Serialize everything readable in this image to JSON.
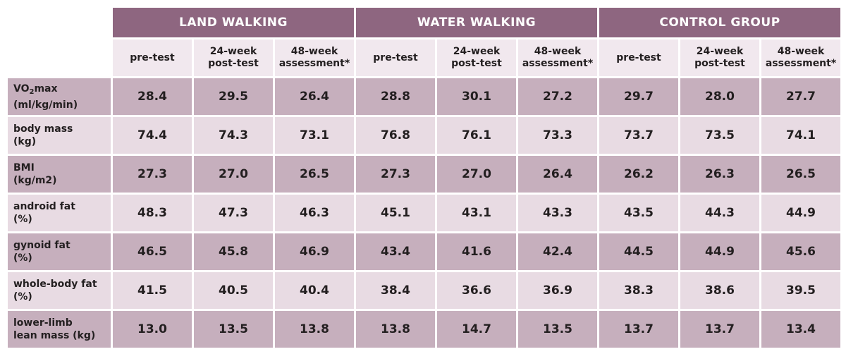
{
  "chart_data": {
    "type": "table",
    "groups": [
      "LAND WALKING",
      "WATER WALKING",
      "CONTROL GROUP"
    ],
    "subheaders": [
      [
        "pre-test"
      ],
      [
        "24-week",
        "post-test"
      ],
      [
        "48-week",
        "assessment*"
      ]
    ],
    "rows": [
      {
        "label_lines": [
          "VO",
          "max",
          "(ml/kg/min)"
        ],
        "label_sub": "2",
        "values": [
          "28.4",
          "29.5",
          "26.4",
          "28.8",
          "30.1",
          "27.2",
          "29.7",
          "28.0",
          "27.7"
        ]
      },
      {
        "label_lines": [
          "body mass",
          "(kg)"
        ],
        "values": [
          "74.4",
          "74.3",
          "73.1",
          "76.8",
          "76.1",
          "73.3",
          "73.7",
          "73.5",
          "74.1"
        ]
      },
      {
        "label_lines": [
          "BMI",
          "(kg/m2)"
        ],
        "values": [
          "27.3",
          "27.0",
          "26.5",
          "27.3",
          "27.0",
          "26.4",
          "26.2",
          "26.3",
          "26.5"
        ]
      },
      {
        "label_lines": [
          "android fat",
          "(%)"
        ],
        "values": [
          "48.3",
          "47.3",
          "46.3",
          "45.1",
          "43.1",
          "43.3",
          "43.5",
          "44.3",
          "44.9"
        ]
      },
      {
        "label_lines": [
          "gynoid fat",
          "(%)"
        ],
        "values": [
          "46.5",
          "45.8",
          "46.9",
          "43.4",
          "41.6",
          "42.4",
          "44.5",
          "44.9",
          "45.6"
        ]
      },
      {
        "label_lines": [
          "whole-body fat",
          "(%)"
        ],
        "values": [
          "41.5",
          "40.5",
          "40.4",
          "38.4",
          "36.6",
          "36.9",
          "38.3",
          "38.6",
          "39.5"
        ]
      },
      {
        "label_lines": [
          "lower-limb",
          "lean mass (kg)"
        ],
        "values": [
          "13.0",
          "13.5",
          "13.8",
          "13.8",
          "14.7",
          "13.5",
          "13.7",
          "13.7",
          "13.4"
        ]
      }
    ]
  },
  "colors": {
    "header_bg": "#8e6680",
    "subheader_bg": "#f1e8ee",
    "row_dark": "#c6afbd",
    "row_light": "#e8dbe3",
    "text": "#231f20"
  }
}
